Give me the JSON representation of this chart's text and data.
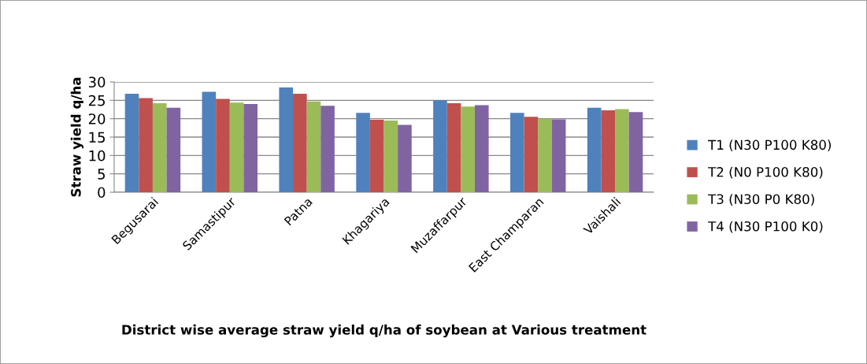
{
  "chart_data": {
    "type": "bar",
    "xlabel": "District wise average straw yield q/ha of soybean at Various treatment",
    "ylabel": "Straw yield q/ha",
    "categories": [
      "Begusarai",
      "Samastipur",
      "Patna",
      "Khagariya",
      "Muzaffarpur",
      "East Champaran",
      "Vaishali"
    ],
    "series": [
      {
        "name": "T1 (N30 P100 K80)",
        "color": "#4f81bd",
        "values": [
          26.8,
          27.3,
          28.5,
          21.6,
          25.0,
          21.6,
          23.0
        ]
      },
      {
        "name": "T2 (N0 P100 K80)",
        "color": "#c0504d",
        "values": [
          25.6,
          25.4,
          26.8,
          19.7,
          24.2,
          20.5,
          22.3
        ]
      },
      {
        "name": "T3 (N30 P0 K80)",
        "color": "#9bbb59",
        "values": [
          24.2,
          24.4,
          24.7,
          19.5,
          23.3,
          20.0,
          22.6
        ]
      },
      {
        "name": "T4 (N30 P100 K0)",
        "color": "#8064a2",
        "values": [
          23.0,
          24.0,
          23.5,
          18.3,
          23.7,
          19.8,
          21.8
        ]
      }
    ],
    "ylim": [
      0,
      30
    ],
    "yticks": [
      0,
      5,
      10,
      15,
      20,
      25,
      30
    ],
    "grid": "y",
    "legend": "right"
  }
}
